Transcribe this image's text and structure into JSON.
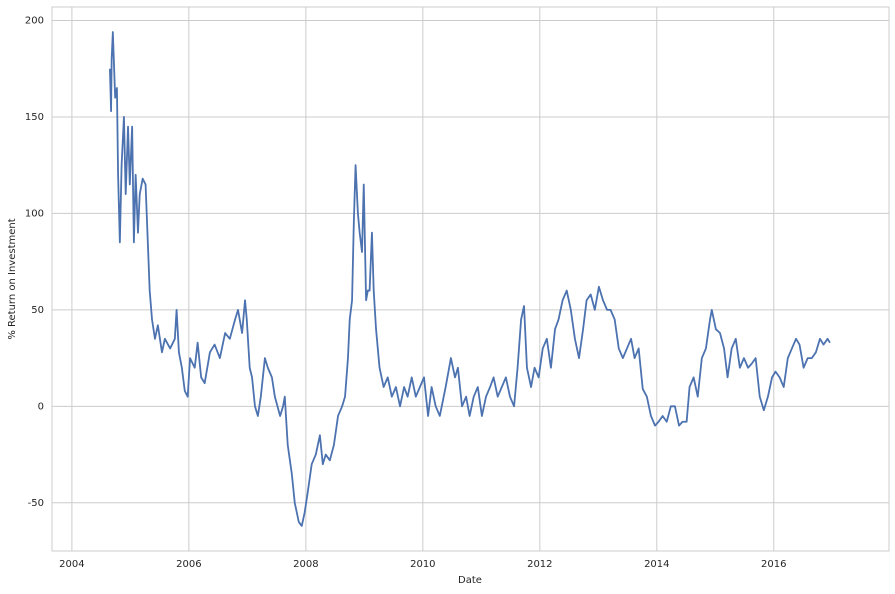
{
  "chart_data": {
    "type": "line",
    "xlabel": "Date",
    "ylabel": "% Return on Investment",
    "x": [
      2004.65,
      2004.67,
      2004.68,
      2004.7,
      2004.74,
      2004.77,
      2004.79,
      2004.82,
      2004.85,
      2004.89,
      2004.92,
      2004.96,
      2004.99,
      2005.03,
      2005.06,
      2005.09,
      2005.13,
      2005.16,
      2005.21,
      2005.26,
      2005.33,
      2005.37,
      2005.42,
      2005.47,
      2005.54,
      2005.59,
      2005.68,
      2005.76,
      2005.79,
      2005.83,
      2005.88,
      2005.93,
      2005.98,
      2006.02,
      2006.1,
      2006.15,
      2006.21,
      2006.27,
      2006.36,
      2006.44,
      2006.53,
      2006.62,
      2006.7,
      2006.79,
      2006.84,
      2006.91,
      2006.96,
      2006.99,
      2007.04,
      2007.08,
      2007.13,
      2007.18,
      2007.23,
      2007.3,
      2007.35,
      2007.42,
      2007.47,
      2007.56,
      2007.61,
      2007.64,
      2007.69,
      2007.76,
      2007.81,
      2007.88,
      2007.93,
      2007.98,
      2008.03,
      2008.1,
      2008.17,
      2008.24,
      2008.29,
      2008.34,
      2008.41,
      2008.48,
      2008.55,
      2008.62,
      2008.67,
      2008.72,
      2008.75,
      2008.79,
      2008.82,
      2008.85,
      2008.89,
      2008.92,
      2008.96,
      2008.99,
      2009.03,
      2009.06,
      2009.09,
      2009.13,
      2009.16,
      2009.2,
      2009.26,
      2009.33,
      2009.4,
      2009.47,
      2009.54,
      2009.61,
      2009.68,
      2009.74,
      2009.81,
      2009.88,
      2009.95,
      2010.02,
      2010.09,
      2010.15,
      2010.22,
      2010.29,
      2010.39,
      2010.48,
      2010.55,
      2010.6,
      2010.67,
      2010.74,
      2010.8,
      2010.87,
      2010.94,
      2011.01,
      2011.08,
      2011.15,
      2011.21,
      2011.28,
      2011.35,
      2011.42,
      2011.49,
      2011.56,
      2011.62,
      2011.68,
      2011.73,
      2011.78,
      2011.85,
      2011.91,
      2011.98,
      2012.05,
      2012.12,
      2012.19,
      2012.26,
      2012.32,
      2012.39,
      2012.46,
      2012.53,
      2012.6,
      2012.67,
      2012.74,
      2012.8,
      2012.87,
      2012.94,
      2013.01,
      2013.08,
      2013.15,
      2013.21,
      2013.28,
      2013.35,
      2013.42,
      2013.49,
      2013.56,
      2013.62,
      2013.69,
      2013.76,
      2013.83,
      2013.9,
      2013.97,
      2014.03,
      2014.1,
      2014.17,
      2014.24,
      2014.31,
      2014.38,
      2014.44,
      2014.51,
      2014.56,
      2014.63,
      2014.7,
      2014.77,
      2014.84,
      2014.91,
      2014.94,
      2015.01,
      2015.08,
      2015.15,
      2015.21,
      2015.28,
      2015.35,
      2015.42,
      2015.49,
      2015.56,
      2015.62,
      2015.69,
      2015.76,
      2015.83,
      2015.9,
      2015.97,
      2016.03,
      2016.1,
      2016.17,
      2016.24,
      2016.31,
      2016.38,
      2016.44,
      2016.51,
      2016.58,
      2016.65,
      2016.72,
      2016.79,
      2016.85,
      2016.92,
      2016.96
    ],
    "series": [
      {
        "color": "#4c72b0",
        "values": [
          175,
          153,
          180,
          194,
          160,
          165,
          120,
          85,
          125,
          150,
          110,
          145,
          115,
          145,
          85,
          120,
          90,
          110,
          118,
          115,
          60,
          45,
          35,
          42,
          28,
          35,
          30,
          35,
          50,
          28,
          20,
          8,
          5,
          25,
          20,
          33,
          15,
          12,
          28,
          32,
          25,
          38,
          35,
          45,
          50,
          38,
          55,
          45,
          20,
          15,
          0,
          -5,
          5,
          25,
          20,
          15,
          5,
          -5,
          0,
          5,
          -20,
          -35,
          -50,
          -60,
          -62,
          -55,
          -45,
          -30,
          -25,
          -15,
          -30,
          -25,
          -28,
          -20,
          -5,
          0,
          5,
          25,
          45,
          55,
          95,
          125,
          100,
          90,
          80,
          115,
          55,
          60,
          60,
          90,
          60,
          40,
          20,
          10,
          15,
          5,
          10,
          0,
          10,
          5,
          15,
          5,
          10,
          15,
          -5,
          10,
          0,
          -5,
          10,
          25,
          15,
          20,
          0,
          5,
          -5,
          5,
          10,
          -5,
          5,
          10,
          15,
          5,
          10,
          15,
          5,
          0,
          20,
          45,
          52,
          20,
          10,
          20,
          15,
          30,
          35,
          20,
          40,
          45,
          55,
          60,
          50,
          35,
          25,
          40,
          55,
          58,
          50,
          62,
          55,
          50,
          50,
          45,
          30,
          25,
          30,
          35,
          25,
          30,
          9,
          5,
          -5,
          -10,
          -8,
          -5,
          -8,
          0,
          0,
          -10,
          -8,
          -8,
          10,
          15,
          5,
          25,
          30,
          45,
          50,
          40,
          38,
          30,
          15,
          30,
          35,
          20,
          25,
          20,
          22,
          25,
          5,
          -2,
          5,
          15,
          18,
          15,
          10,
          25,
          30,
          35,
          32,
          20,
          25,
          25,
          28,
          35,
          32,
          35,
          33
        ]
      }
    ],
    "xlim": [
      2003.66,
      2017.97
    ],
    "xticks": [
      2004,
      2006,
      2008,
      2010,
      2012,
      2014,
      2016
    ],
    "ylim": [
      -75,
      207
    ],
    "yticks": [
      -50,
      0,
      50,
      100,
      150,
      200
    ],
    "grid": true
  }
}
